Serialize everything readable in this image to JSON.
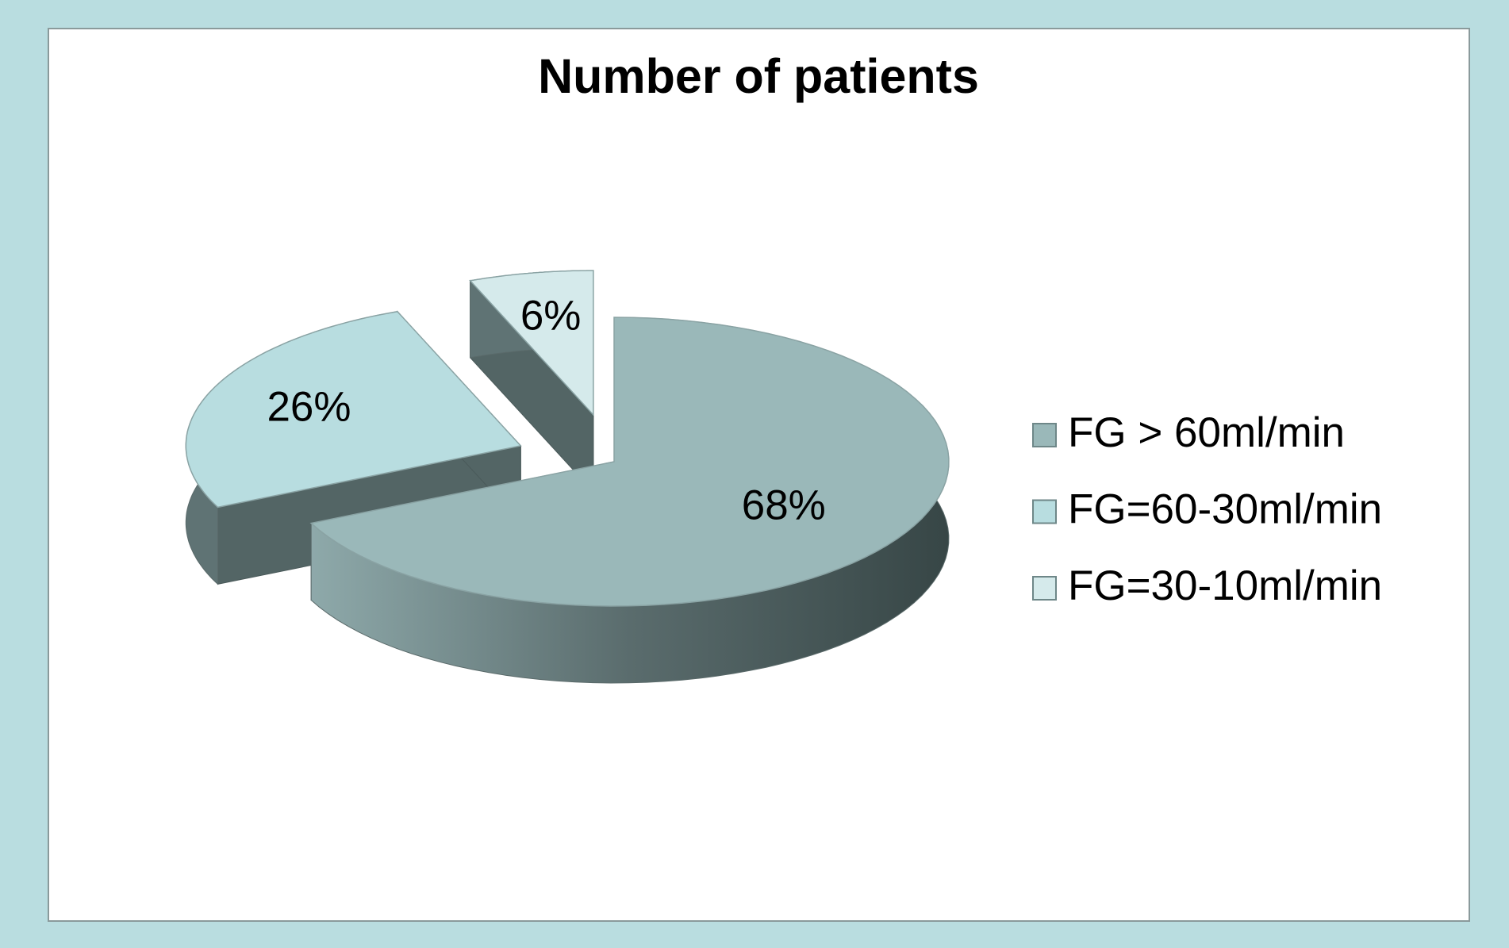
{
  "chart_data": {
    "type": "pie",
    "title": "Number of patients",
    "categories": [
      "FG > 60ml/min",
      "FG=60-30ml/min",
      "FG=30-10ml/min"
    ],
    "values": [
      68,
      26,
      6
    ],
    "value_labels": [
      "68%",
      "26%",
      "6%"
    ],
    "colors": [
      "#9ab8b9",
      "#b8dde0",
      "#d5eaeb"
    ],
    "legend": "right"
  }
}
